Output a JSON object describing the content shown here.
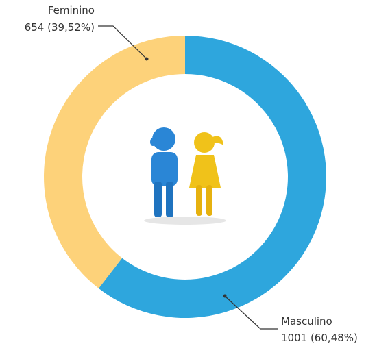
{
  "chart_data": {
    "type": "donut",
    "categories": [
      "Masculino",
      "Feminino"
    ],
    "values": [
      1001,
      654
    ],
    "value_labels": [
      "1001 (60,48%)",
      "654 (39,52%)"
    ],
    "colors": [
      "#2ea6dd",
      "#fdd27a"
    ]
  }
}
